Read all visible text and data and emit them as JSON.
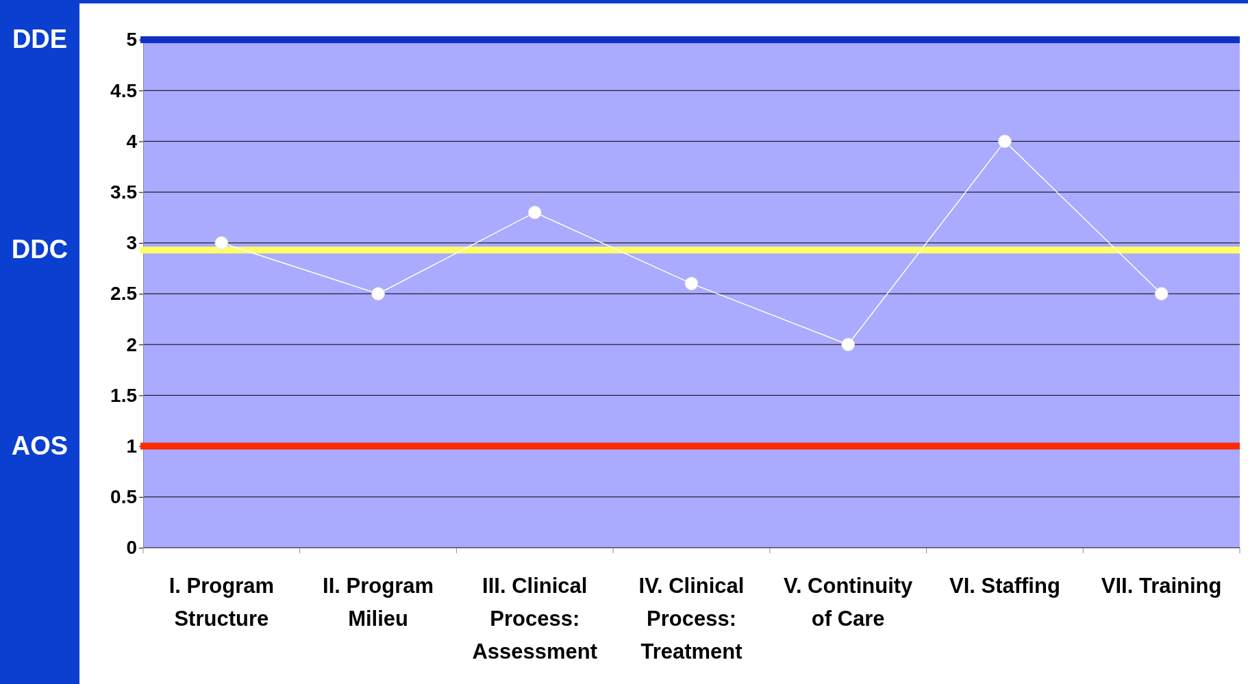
{
  "chart_data": {
    "type": "line",
    "categories": [
      "I. Program Structure",
      "II. Program Milieu",
      "III. Clinical Process: Assessment",
      "IV. Clinical Process: Treatment",
      "V. Continuity of Care",
      "VI. Staffing",
      "VII. Training"
    ],
    "series": [
      {
        "color": "#ffffff",
        "values": [
          3,
          2.5,
          3.3,
          2.6,
          2.0,
          4.0,
          2.5
        ]
      }
    ],
    "ylim": [
      0,
      5
    ],
    "yticks": [
      0,
      0.5,
      1,
      1.5,
      2,
      2.5,
      3,
      3.5,
      4,
      4.5,
      5
    ],
    "ref_lines": [
      {
        "axis": "y",
        "value": 5,
        "label": "DDE",
        "color": "#1030c8"
      },
      {
        "axis": "y",
        "value": 2.93,
        "label": "DDC",
        "color": "#ffff66"
      },
      {
        "axis": "y",
        "value": 1,
        "label": "AOS",
        "color": "#ff2a00"
      }
    ],
    "grid": "y",
    "marker": "circle",
    "line_style": "solid"
  }
}
